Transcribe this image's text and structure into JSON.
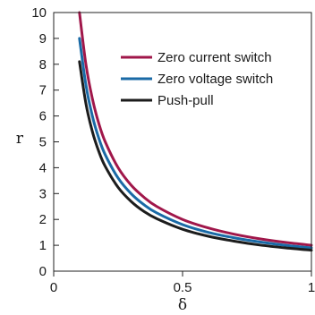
{
  "chart_data": {
    "type": "line",
    "title": "",
    "xlabel": "δ",
    "ylabel": "r",
    "xlim": [
      0,
      1
    ],
    "ylim": [
      0,
      10
    ],
    "xticks": [
      0,
      0.5,
      1
    ],
    "xtick_labels": [
      "0",
      "0.5",
      "1"
    ],
    "yticks": [
      0,
      1,
      2,
      3,
      4,
      5,
      6,
      7,
      8,
      9,
      10
    ],
    "ytick_labels": [
      "0",
      "1",
      "2",
      "3",
      "4",
      "5",
      "6",
      "7",
      "8",
      "9",
      "10"
    ],
    "grid": false,
    "legend_position": "top-right",
    "series": [
      {
        "name": "Zero current switch",
        "color": "#a0174a",
        "x": [
          0.1,
          0.125,
          0.15,
          0.175,
          0.2,
          0.25,
          0.3,
          0.35,
          0.4,
          0.5,
          0.6,
          0.7,
          0.8,
          0.9,
          1.0
        ],
        "y": [
          10.0,
          8.0,
          6.67,
          5.71,
          5.0,
          4.0,
          3.33,
          2.86,
          2.5,
          2.0,
          1.67,
          1.43,
          1.25,
          1.11,
          1.0
        ]
      },
      {
        "name": "Zero voltage switch",
        "color": "#1a6aa6",
        "x": [
          0.1,
          0.125,
          0.15,
          0.175,
          0.2,
          0.25,
          0.3,
          0.35,
          0.4,
          0.5,
          0.6,
          0.7,
          0.8,
          0.9,
          1.0
        ],
        "y": [
          9.0,
          7.2,
          6.0,
          5.14,
          4.5,
          3.6,
          3.0,
          2.57,
          2.25,
          1.8,
          1.5,
          1.29,
          1.13,
          1.0,
          0.9
        ]
      },
      {
        "name": "Push-pull",
        "color": "#1c1c1c",
        "x": [
          0.1,
          0.125,
          0.15,
          0.175,
          0.2,
          0.25,
          0.3,
          0.35,
          0.4,
          0.5,
          0.6,
          0.7,
          0.8,
          0.9,
          1.0
        ],
        "y": [
          8.1,
          6.48,
          5.4,
          4.63,
          4.05,
          3.24,
          2.7,
          2.31,
          2.03,
          1.62,
          1.35,
          1.16,
          1.01,
          0.9,
          0.81
        ]
      }
    ]
  }
}
